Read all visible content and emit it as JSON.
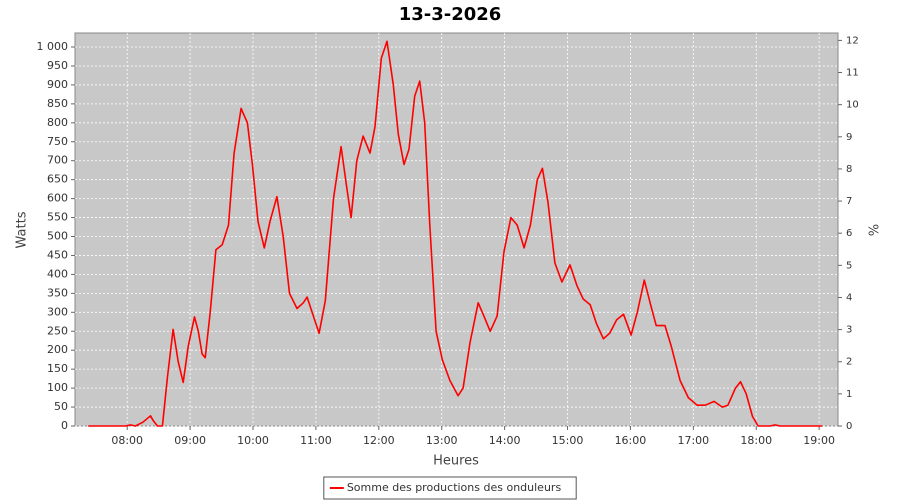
{
  "chart_data": {
    "type": "line",
    "title": "13-3-2026",
    "xlabel": "Heures",
    "ylabel": "Watts",
    "y2label": "%",
    "x": [
      7.38,
      7.97,
      8.05,
      8.13,
      8.25,
      8.37,
      8.41,
      8.48,
      8.56,
      8.64,
      8.73,
      8.81,
      8.89,
      8.97,
      9.07,
      9.13,
      9.19,
      9.24,
      9.32,
      9.41,
      9.51,
      9.61,
      9.7,
      9.81,
      9.91,
      9.99,
      10.08,
      10.18,
      10.27,
      10.38,
      10.48,
      10.58,
      10.7,
      10.8,
      10.86,
      10.94,
      11.05,
      11.15,
      11.28,
      11.4,
      11.49,
      11.56,
      11.65,
      11.75,
      11.86,
      11.94,
      12.04,
      12.13,
      12.23,
      12.31,
      12.4,
      12.48,
      12.57,
      12.65,
      12.73,
      12.81,
      12.91,
      13.01,
      13.13,
      13.26,
      13.34,
      13.45,
      13.58,
      13.67,
      13.77,
      13.88,
      13.99,
      14.1,
      14.2,
      14.31,
      14.41,
      14.52,
      14.6,
      14.69,
      14.8,
      14.91,
      15.04,
      15.15,
      15.25,
      15.36,
      15.46,
      15.57,
      15.67,
      15.78,
      15.89,
      16.01,
      16.11,
      16.22,
      16.32,
      16.41,
      16.55,
      16.65,
      16.79,
      16.92,
      17.06,
      17.19,
      17.33,
      17.46,
      17.55,
      17.67,
      17.75,
      17.84,
      17.94,
      18.03,
      18.22,
      18.3,
      18.38,
      19.05
    ],
    "series": [
      {
        "name": "Somme des productions des onduleurs",
        "color": "#ff0000",
        "values": [
          0,
          0,
          3,
          0,
          10,
          27,
          15,
          0,
          0,
          130,
          255,
          170,
          115,
          210,
          288,
          250,
          190,
          180,
          300,
          465,
          478,
          530,
          720,
          838,
          800,
          690,
          540,
          470,
          540,
          605,
          500,
          350,
          310,
          325,
          340,
          300,
          245,
          330,
          600,
          737,
          630,
          550,
          700,
          765,
          720,
          790,
          970,
          1015,
          900,
          770,
          690,
          730,
          870,
          910,
          800,
          530,
          250,
          175,
          120,
          80,
          100,
          220,
          325,
          290,
          250,
          290,
          460,
          550,
          530,
          470,
          530,
          650,
          680,
          590,
          430,
          380,
          425,
          370,
          335,
          320,
          270,
          230,
          245,
          280,
          295,
          240,
          300,
          385,
          320,
          265,
          265,
          210,
          120,
          75,
          55,
          55,
          65,
          50,
          55,
          100,
          117,
          85,
          25,
          0,
          0,
          3,
          0,
          0
        ]
      }
    ],
    "xlim": [
      7.17,
      19.3
    ],
    "xticks": [
      {
        "value": 8,
        "label": "08:00"
      },
      {
        "value": 9,
        "label": "09:00"
      },
      {
        "value": 10,
        "label": "10:00"
      },
      {
        "value": 11,
        "label": "11:00"
      },
      {
        "value": 12,
        "label": "12:00"
      },
      {
        "value": 13,
        "label": "13:00"
      },
      {
        "value": 14,
        "label": "14:00"
      },
      {
        "value": 15,
        "label": "15:00"
      },
      {
        "value": 16,
        "label": "16:00"
      },
      {
        "value": 17,
        "label": "17:00"
      },
      {
        "value": 18,
        "label": "18:00"
      },
      {
        "value": 19,
        "label": "19:00"
      }
    ],
    "ylim": [
      0,
      1037
    ],
    "yticks": [
      0,
      50,
      100,
      150,
      200,
      250,
      300,
      350,
      400,
      450,
      500,
      550,
      600,
      650,
      700,
      750,
      800,
      850,
      900,
      950,
      {
        "value": 1000,
        "label": "1 000"
      }
    ],
    "y2lim": [
      0,
      12.23
    ],
    "y2ticks": [
      0,
      1,
      2,
      3,
      4,
      5,
      6,
      7,
      8,
      9,
      10,
      11,
      12
    ],
    "grid": true,
    "legend": "bottom"
  }
}
